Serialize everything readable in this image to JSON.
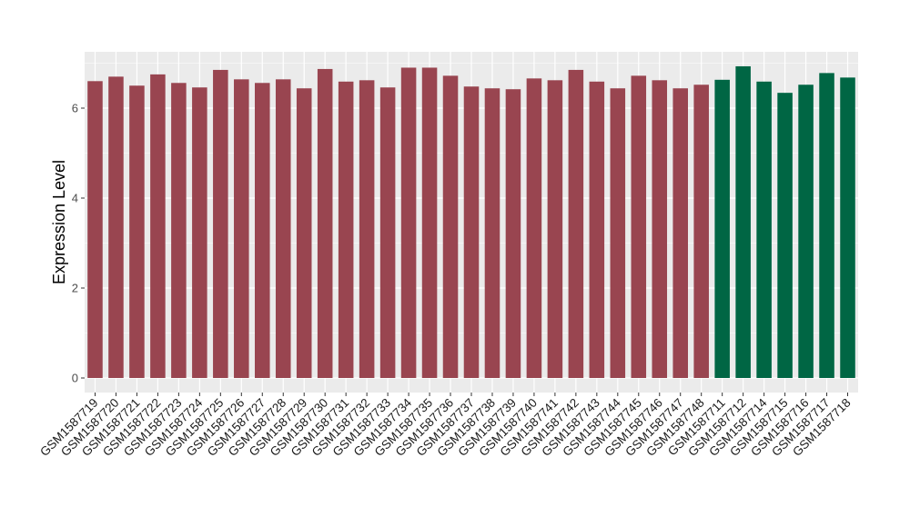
{
  "chart_data": {
    "type": "bar",
    "title": "",
    "xlabel": "",
    "ylabel": "Expression Level",
    "ylim": [
      0,
      7.2
    ],
    "yticks": [
      0,
      2,
      4,
      6
    ],
    "grid": true,
    "categories": [
      "GSM1587719",
      "GSM1587720",
      "GSM1587721",
      "GSM1587722",
      "GSM1587723",
      "GSM1587724",
      "GSM1587725",
      "GSM1587726",
      "GSM1587727",
      "GSM1587728",
      "GSM1587729",
      "GSM1587730",
      "GSM1587731",
      "GSM1587732",
      "GSM1587733",
      "GSM1587734",
      "GSM1587735",
      "GSM1587736",
      "GSM1587737",
      "GSM1587738",
      "GSM1587739",
      "GSM1587740",
      "GSM1587741",
      "GSM1587742",
      "GSM1587743",
      "GSM1587744",
      "GSM1587745",
      "GSM1587746",
      "GSM1587747",
      "GSM1587748",
      "GSM1587711",
      "GSM1587712",
      "GSM1587714",
      "GSM1587715",
      "GSM1587716",
      "GSM1587717",
      "GSM1587718"
    ],
    "values": [
      6.6,
      6.7,
      6.5,
      6.75,
      6.56,
      6.46,
      6.85,
      6.64,
      6.56,
      6.64,
      6.44,
      6.87,
      6.59,
      6.62,
      6.46,
      6.9,
      6.9,
      6.72,
      6.48,
      6.44,
      6.42,
      6.66,
      6.62,
      6.85,
      6.59,
      6.44,
      6.72,
      6.62,
      6.44,
      6.52,
      6.63,
      6.93,
      6.59,
      6.34,
      6.52,
      6.78,
      6.68
    ],
    "groups": [
      0,
      0,
      0,
      0,
      0,
      0,
      0,
      0,
      0,
      0,
      0,
      0,
      0,
      0,
      0,
      0,
      0,
      0,
      0,
      0,
      0,
      0,
      0,
      0,
      0,
      0,
      0,
      0,
      0,
      0,
      1,
      1,
      1,
      1,
      1,
      1,
      1
    ],
    "group_colors": [
      "#994550",
      "#006644"
    ],
    "background_color": "#ebebeb",
    "grid_color": "#ffffff"
  }
}
